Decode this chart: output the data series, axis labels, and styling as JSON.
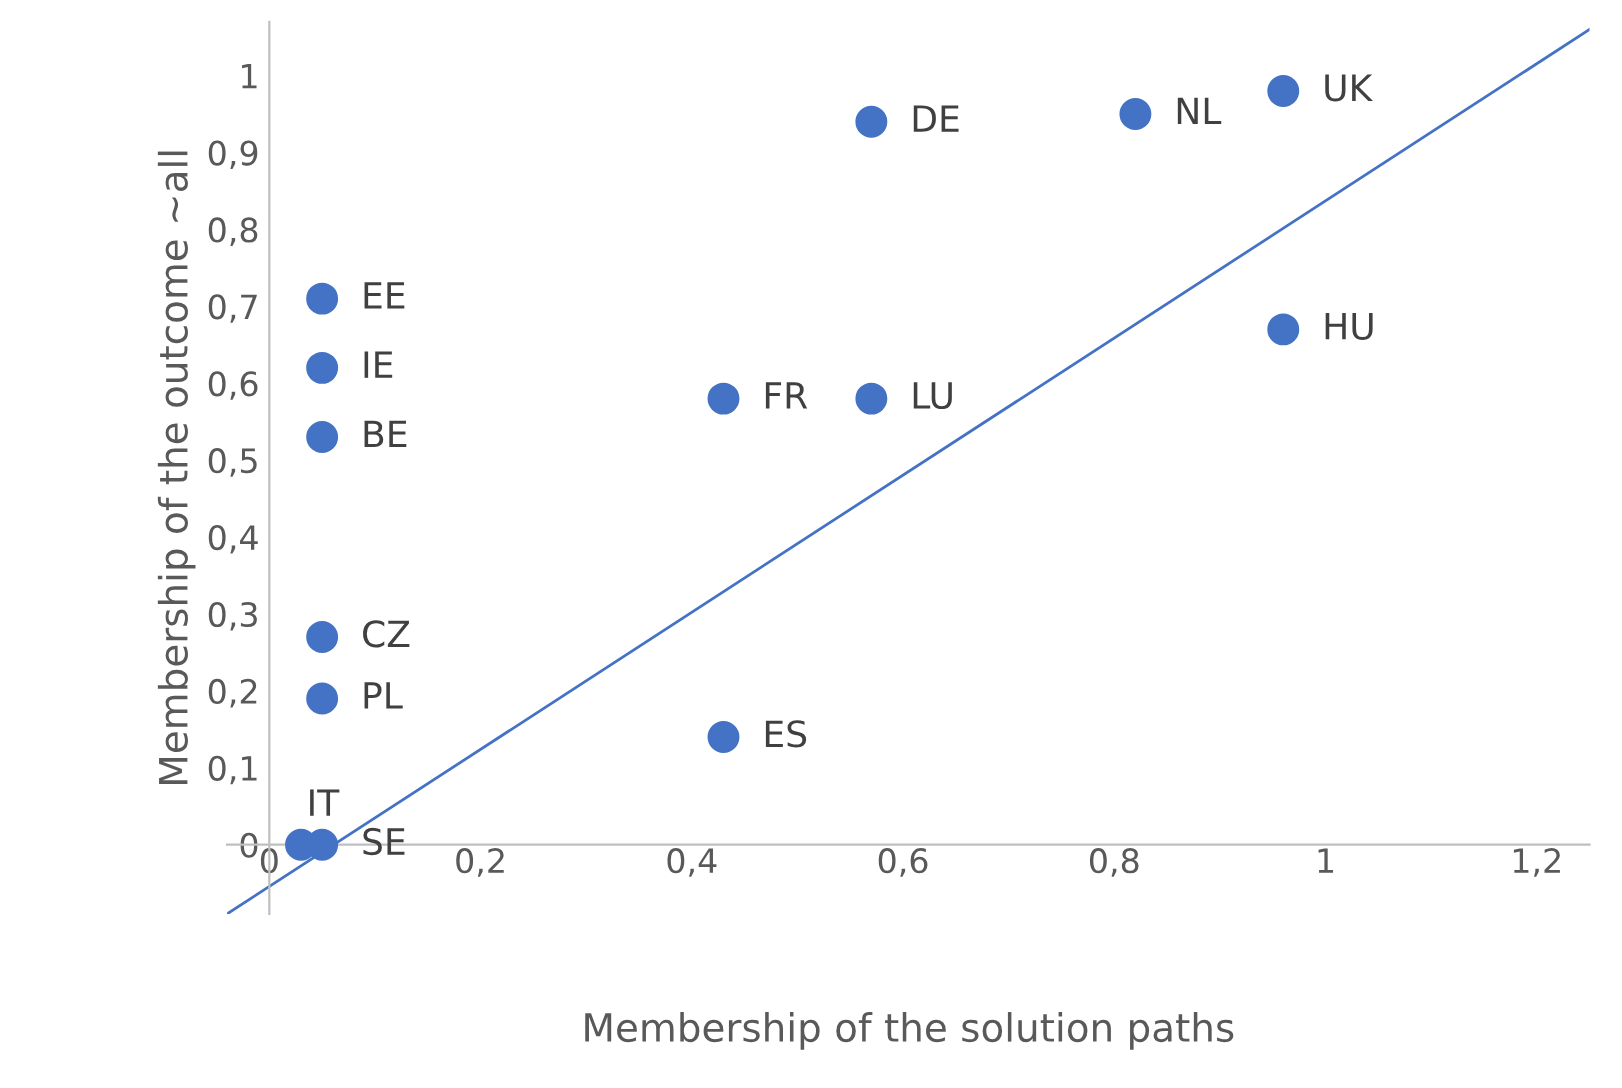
{
  "chart_data": {
    "type": "scatter",
    "xlabel": "Membership of the solution paths",
    "ylabel": "Membership of the outcome ~all",
    "xlim": [
      -0.04,
      1.25
    ],
    "ylim": [
      -0.09,
      1.07
    ],
    "xticks": [
      0,
      {
        "value": 0.2,
        "label": "0,2"
      },
      {
        "value": 0.4,
        "label": "0,4"
      },
      {
        "value": 0.6,
        "label": "0,6"
      },
      {
        "value": 0.8,
        "label": "0,8"
      },
      1,
      {
        "value": 1.2,
        "label": "1,2"
      }
    ],
    "yticks": [
      0,
      {
        "value": 0.1,
        "label": "0,1"
      },
      {
        "value": 0.2,
        "label": "0,2"
      },
      {
        "value": 0.3,
        "label": "0,3"
      },
      {
        "value": 0.4,
        "label": "0,4"
      },
      {
        "value": 0.5,
        "label": "0,5"
      },
      {
        "value": 0.6,
        "label": "0,6"
      },
      {
        "value": 0.7,
        "label": "0,7"
      },
      {
        "value": 0.8,
        "label": "0,8"
      },
      {
        "value": 0.9,
        "label": "0,9"
      },
      1
    ],
    "grid": false,
    "legend": false,
    "marker": "circle",
    "series": [
      {
        "type": "scatter",
        "color": "#4472c4",
        "x": [
          0.03,
          0.05,
          0.05,
          0.05,
          0.05,
          0.05,
          0.05,
          0.43,
          0.57,
          0.57,
          0.82,
          0.96,
          0.96,
          0.43
        ],
        "values": [
          0,
          0,
          0.71,
          0.62,
          0.53,
          0.27,
          0.19,
          0.58,
          0.58,
          0.94,
          0.95,
          0.98,
          0.67,
          0.14
        ]
      },
      {
        "type": "line",
        "marker": "none",
        "color": "#4472c4",
        "x": [
          -0.04,
          1.25
        ],
        "values": [
          -0.09,
          1.06
        ]
      }
    ],
    "annotations": [
      {
        "text": "IT",
        "x": 0.03,
        "y": 0
      },
      {
        "text": "SE",
        "x": 0.05,
        "y": 0
      },
      {
        "text": "EE",
        "x": 0.05,
        "y": 0.71
      },
      {
        "text": "IE",
        "x": 0.05,
        "y": 0.62
      },
      {
        "text": "BE",
        "x": 0.05,
        "y": 0.53
      },
      {
        "text": "CZ",
        "x": 0.05,
        "y": 0.27
      },
      {
        "text": "PL",
        "x": 0.05,
        "y": 0.19
      },
      {
        "text": "FR",
        "x": 0.43,
        "y": 0.58
      },
      {
        "text": "LU",
        "x": 0.57,
        "y": 0.58
      },
      {
        "text": "DE",
        "x": 0.57,
        "y": 0.94
      },
      {
        "text": "NL",
        "x": 0.82,
        "y": 0.95
      },
      {
        "text": "UK",
        "x": 0.96,
        "y": 0.98
      },
      {
        "text": "HU",
        "x": 0.96,
        "y": 0.67
      },
      {
        "text": "ES",
        "x": 0.43,
        "y": 0.14
      }
    ]
  }
}
